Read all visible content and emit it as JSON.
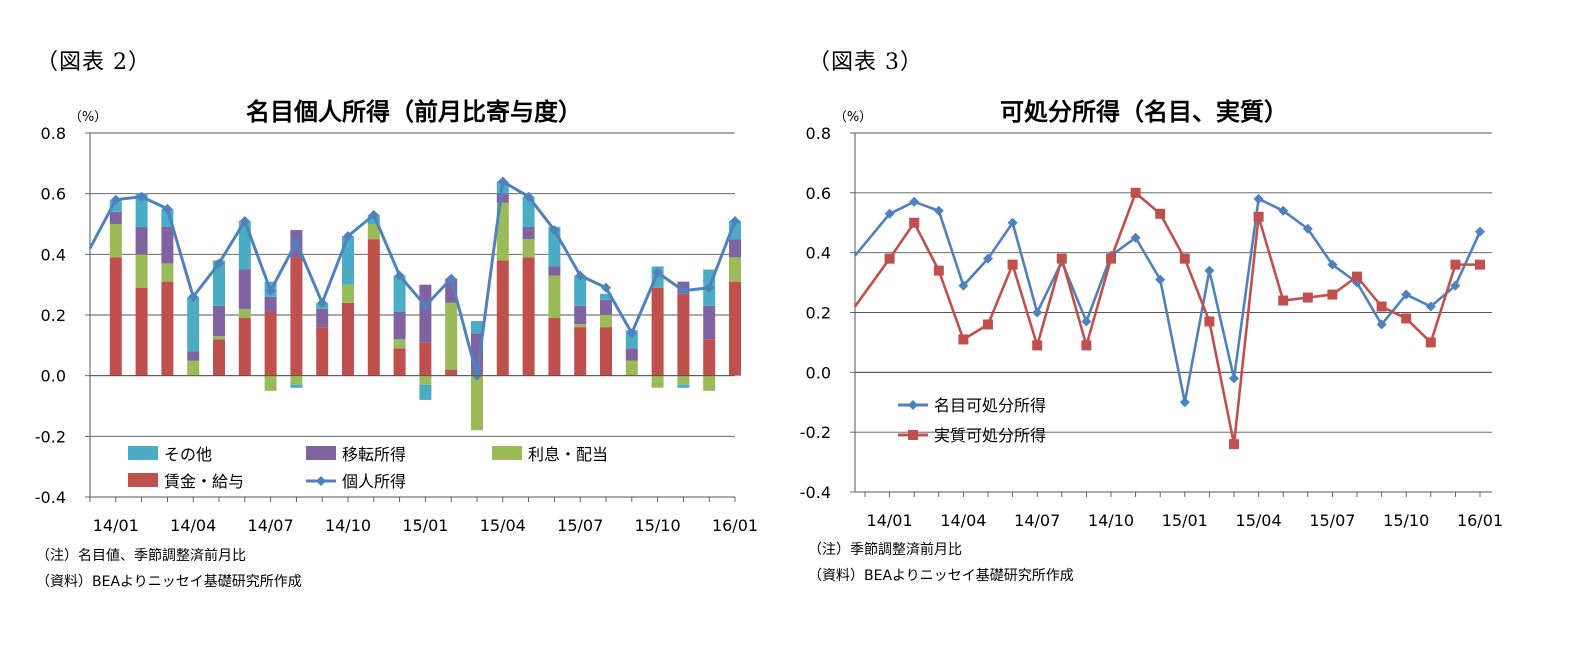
{
  "left": {
    "fig_label": "（図表 2）",
    "title": "名目個人所得（前月比寄与度）",
    "note": "（注）名目値、季節調整済前月比",
    "source": "（資料）BEAよりニッセイ基礎研究所作成"
  },
  "right": {
    "fig_label": "（図表 3）",
    "title": "可処分所得（名目、実質）",
    "note": "（注）季節調整済前月比",
    "source": "（資料）BEAよりニッセイ基礎研究所作成"
  },
  "colors": {
    "wages": "#c0504d",
    "interest": "#9bbb59",
    "transfer": "#8064a2",
    "other": "#4bacc6",
    "personal_income": "#4f81bd",
    "nominal": "#4f81bd",
    "real": "#c0504d"
  },
  "chart_data": [
    {
      "type": "bar",
      "stacked": true,
      "title": "名目個人所得（前月比寄与度）",
      "yunit": "（%）",
      "ylim": [
        -0.4,
        0.8
      ],
      "yticks": [
        "0.8",
        "0.6",
        "0.4",
        "0.2",
        "0.0",
        "-0.2",
        "-0.4"
      ],
      "xticks": [
        "14/01",
        "14/04",
        "14/07",
        "14/10",
        "15/01",
        "15/04",
        "15/07",
        "15/10",
        "16/01"
      ],
      "grid": true,
      "legend_position": "bottom-left",
      "categories": [
        "13/12",
        "14/01",
        "14/02",
        "14/03",
        "14/04",
        "14/05",
        "14/06",
        "14/07",
        "14/08",
        "14/09",
        "14/10",
        "14/11",
        "14/12",
        "15/01",
        "15/02",
        "15/03",
        "15/04",
        "15/05",
        "15/06",
        "15/07",
        "15/08",
        "15/09",
        "15/10",
        "15/11",
        "15/12",
        "16/01"
      ],
      "series": [
        {
          "name": "賃金・給与",
          "key": "wages",
          "values": [
            null,
            0.39,
            0.29,
            0.31,
            0.0,
            0.12,
            0.19,
            0.21,
            0.39,
            0.16,
            0.24,
            0.45,
            0.09,
            0.11,
            0.02,
            0.0,
            0.38,
            0.39,
            0.19,
            0.16,
            0.16,
            0.0,
            0.29,
            0.27,
            0.12,
            0.31
          ]
        },
        {
          "name": "利息・配当",
          "key": "interest",
          "values": [
            null,
            0.11,
            0.11,
            0.06,
            0.05,
            0.01,
            0.03,
            -0.05,
            -0.03,
            0.0,
            0.06,
            0.05,
            0.03,
            -0.03,
            0.22,
            -0.18,
            0.19,
            0.06,
            0.14,
            0.01,
            0.04,
            0.05,
            -0.04,
            -0.03,
            -0.05,
            0.08
          ]
        },
        {
          "name": "移転所得",
          "key": "transfer",
          "values": [
            null,
            0.04,
            0.09,
            0.12,
            0.03,
            0.1,
            0.13,
            0.05,
            0.09,
            0.06,
            0.0,
            0.0,
            0.09,
            0.19,
            0.08,
            0.14,
            0.03,
            0.04,
            0.03,
            0.06,
            0.05,
            0.04,
            0.0,
            0.04,
            0.11,
            0.06
          ]
        },
        {
          "name": "その他",
          "key": "other",
          "values": [
            null,
            0.04,
            0.11,
            0.06,
            0.18,
            0.15,
            0.16,
            0.05,
            -0.01,
            0.02,
            0.16,
            0.03,
            0.12,
            -0.05,
            0.0,
            0.04,
            0.04,
            0.1,
            0.13,
            0.1,
            0.02,
            0.06,
            0.07,
            -0.01,
            0.12,
            0.06
          ]
        }
      ],
      "line": {
        "name": "個人所得",
        "key": "personal_income",
        "values": [
          0.42,
          0.58,
          0.59,
          0.55,
          0.26,
          0.37,
          0.51,
          0.28,
          0.44,
          0.24,
          0.46,
          0.53,
          0.33,
          0.23,
          0.32,
          0.0,
          0.64,
          0.59,
          0.48,
          0.33,
          0.29,
          0.14,
          0.34,
          0.28,
          0.29,
          0.51
        ]
      }
    },
    {
      "type": "line",
      "title": "可処分所得（名目、実質）",
      "yunit": "（%）",
      "ylim": [
        -0.4,
        0.8
      ],
      "yticks": [
        "0.8",
        "0.6",
        "0.4",
        "0.2",
        "0.0",
        "-0.2",
        "-0.4"
      ],
      "xticks": [
        "14/01",
        "14/04",
        "14/07",
        "14/10",
        "15/01",
        "15/04",
        "15/07",
        "15/10",
        "16/01"
      ],
      "grid": true,
      "legend_position": "bottom-left",
      "categories": [
        "13/12",
        "14/01",
        "14/02",
        "14/03",
        "14/04",
        "14/05",
        "14/06",
        "14/07",
        "14/08",
        "14/09",
        "14/10",
        "14/11",
        "14/12",
        "15/01",
        "15/02",
        "15/03",
        "15/04",
        "15/05",
        "15/06",
        "15/07",
        "15/08",
        "15/09",
        "15/10",
        "15/11",
        "15/12",
        "16/01"
      ],
      "series": [
        {
          "name": "名目可処分所得",
          "key": "nominal",
          "marker": "diamond",
          "values": [
            0.39,
            0.53,
            0.57,
            0.54,
            0.29,
            0.38,
            0.5,
            0.2,
            0.37,
            0.17,
            0.39,
            0.45,
            0.31,
            -0.1,
            0.34,
            -0.02,
            0.58,
            0.54,
            0.48,
            0.36,
            0.3,
            0.16,
            0.26,
            0.22,
            0.29,
            0.47
          ]
        },
        {
          "name": "実質可処分所得",
          "key": "real",
          "marker": "square",
          "values": [
            0.22,
            0.38,
            0.5,
            0.34,
            0.11,
            0.16,
            0.36,
            0.09,
            0.38,
            0.09,
            0.38,
            0.6,
            0.53,
            0.38,
            0.17,
            -0.24,
            0.52,
            0.24,
            0.25,
            0.26,
            0.32,
            0.22,
            0.18,
            0.1,
            0.36,
            0.36
          ]
        }
      ]
    }
  ]
}
